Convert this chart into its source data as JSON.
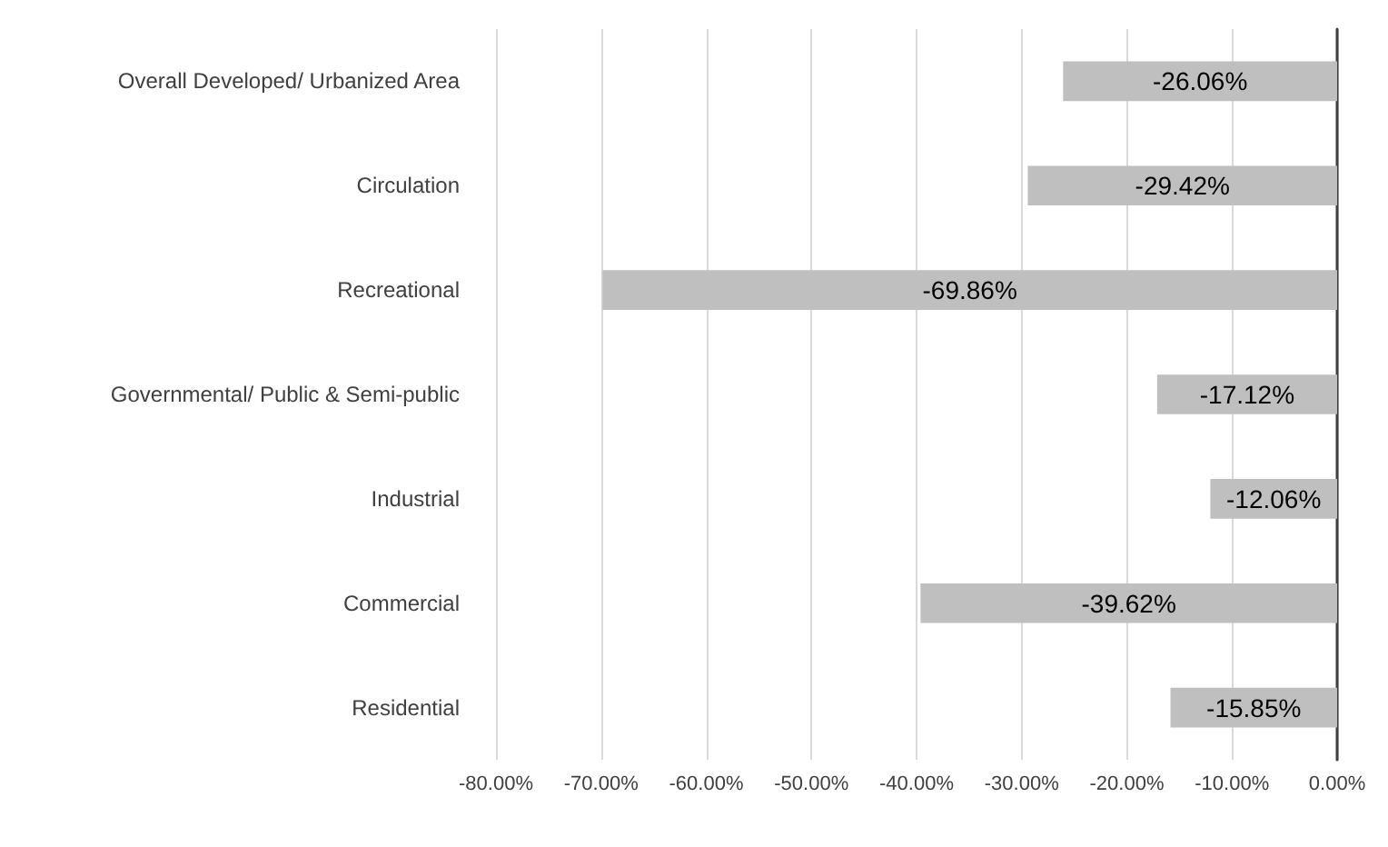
{
  "chart_data": {
    "type": "bar",
    "orientation": "horizontal",
    "categories": [
      "Overall Developed/ Urbanized Area",
      "Circulation",
      "Recreational",
      "Governmental/ Public & Semi-public",
      "Industrial",
      "Commercial",
      "Residential"
    ],
    "values": [
      -26.06,
      -29.42,
      -69.86,
      -17.12,
      -12.06,
      -39.62,
      -15.85
    ],
    "value_labels": [
      "-26.06%",
      "-29.42%",
      "-69.86%",
      "-17.12%",
      "-12.06%",
      "-39.62%",
      "-15.85%"
    ],
    "color": "#bfbfbf",
    "xlim": [
      -80,
      0
    ],
    "xticks": [
      {
        "value": -80,
        "label": "-80.00%"
      },
      {
        "value": -70,
        "label": "-70.00%"
      },
      {
        "value": -60,
        "label": "-60.00%"
      },
      {
        "value": -50,
        "label": "-50.00%"
      },
      {
        "value": -40,
        "label": "-40.00%"
      },
      {
        "value": -30,
        "label": "-30.00%"
      },
      {
        "value": -20,
        "label": "-20.00%"
      },
      {
        "value": -10,
        "label": "-10.00%"
      },
      {
        "value": 0,
        "label": "0.00%"
      }
    ],
    "grid": "x"
  }
}
